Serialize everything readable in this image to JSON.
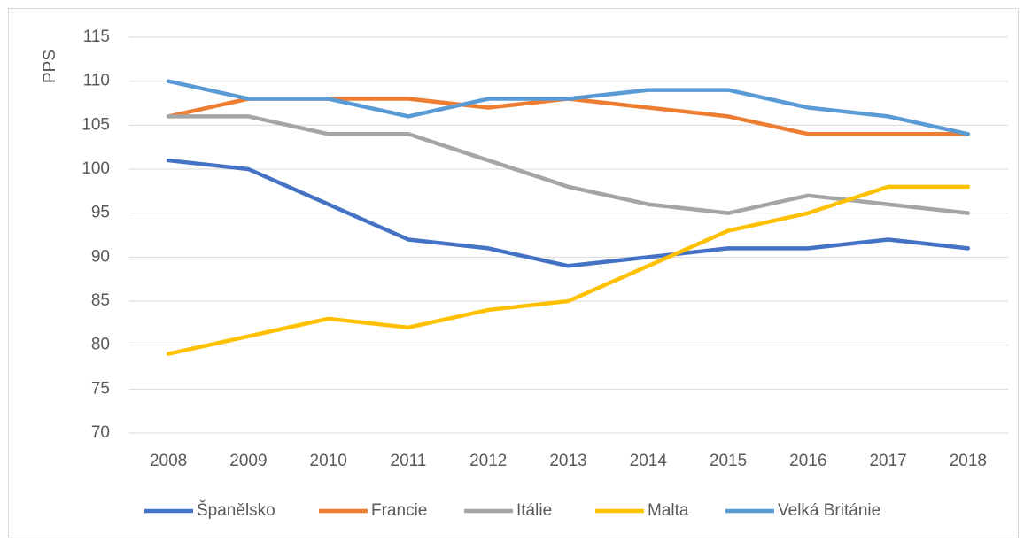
{
  "chart_data": {
    "type": "line",
    "y_label": "PPS",
    "categories": [
      "2008",
      "2009",
      "2010",
      "2011",
      "2012",
      "2013",
      "2014",
      "2015",
      "2016",
      "2017",
      "2018"
    ],
    "series": [
      {
        "name": "Španělsko",
        "color": "#4472c4",
        "values": [
          101,
          100,
          96,
          92,
          91,
          89,
          90,
          91,
          91,
          92,
          91
        ]
      },
      {
        "name": "Francie",
        "color": "#ed7d31",
        "values": [
          106,
          108,
          108,
          108,
          107,
          108,
          107,
          106,
          104,
          104,
          104
        ]
      },
      {
        "name": "Itálie",
        "color": "#a5a5a5",
        "values": [
          106,
          106,
          104,
          104,
          101,
          98,
          96,
          95,
          97,
          96,
          95
        ]
      },
      {
        "name": "Malta",
        "color": "#ffc000",
        "values": [
          79,
          81,
          83,
          82,
          84,
          85,
          89,
          93,
          95,
          98,
          98
        ]
      },
      {
        "name": "Velká Británie",
        "color": "#5b9bd5",
        "values": [
          110,
          108,
          108,
          106,
          108,
          108,
          109,
          109,
          107,
          106,
          104
        ]
      }
    ],
    "ylim": [
      70,
      115
    ],
    "yticks": [
      70,
      75,
      80,
      85,
      90,
      95,
      100,
      105,
      110,
      115
    ],
    "grid": true,
    "legend": "bottom"
  }
}
